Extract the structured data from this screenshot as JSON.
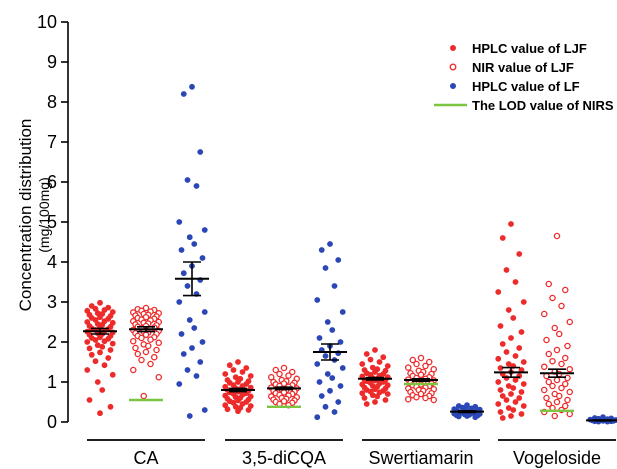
{
  "chart_data": {
    "type": "scatter",
    "ylabel": "Concentration distribution",
    "yunit": "(mg/100mg)",
    "ylim": [
      0,
      10
    ],
    "yticks": [
      0,
      1,
      2,
      3,
      4,
      5,
      6,
      7,
      8,
      9,
      10
    ],
    "categories": [
      "CA",
      "3,5-diCQA",
      "Swertiamarin",
      "Vogeloside"
    ],
    "legend_position": "top-right",
    "colors": {
      "hplc_ljf": "#ee2b2b",
      "nir_ljf": "#ee2b2b",
      "hplc_lf": "#2b47b5",
      "lod": "#7cc540",
      "summary": "#000000"
    },
    "series": [
      {
        "name": "HPLC value of LJF",
        "marker": "filled-circle",
        "color": "#ee2b2b",
        "groups": [
          {
            "category": "CA",
            "mean": 2.27,
            "sem": 0.07,
            "values": [
              2.98,
              2.9,
              2.86,
              2.83,
              2.8,
              2.78,
              2.75,
              2.72,
              2.7,
              2.68,
              2.65,
              2.62,
              2.6,
              2.58,
              2.55,
              2.52,
              2.5,
              2.48,
              2.45,
              2.43,
              2.4,
              2.38,
              2.36,
              2.34,
              2.32,
              2.3,
              2.28,
              2.26,
              2.24,
              2.22,
              2.2,
              2.18,
              2.15,
              2.12,
              2.1,
              2.08,
              2.05,
              2.02,
              2.0,
              1.96,
              1.92,
              1.88,
              1.84,
              1.8,
              1.74,
              1.68,
              1.6,
              1.52,
              1.42,
              1.3,
              1.18,
              1.0,
              0.8,
              0.55,
              0.38,
              0.22
            ]
          },
          {
            "category": "3,5-diCQA",
            "mean": 0.8,
            "sem": 0.04,
            "values": [
              1.5,
              1.42,
              1.35,
              1.3,
              1.25,
              1.2,
              1.15,
              1.12,
              1.08,
              1.05,
              1.02,
              1.0,
              0.98,
              0.95,
              0.92,
              0.9,
              0.88,
              0.86,
              0.84,
              0.82,
              0.8,
              0.78,
              0.76,
              0.74,
              0.72,
              0.7,
              0.68,
              0.66,
              0.64,
              0.62,
              0.6,
              0.58,
              0.56,
              0.54,
              0.52,
              0.5,
              0.48,
              0.45,
              0.42,
              0.4,
              0.38,
              0.35,
              0.32,
              0.3,
              0.27
            ]
          },
          {
            "category": "Swertiamarin",
            "mean": 1.08,
            "sem": 0.03,
            "values": [
              1.8,
              1.7,
              1.62,
              1.56,
              1.5,
              1.45,
              1.4,
              1.36,
              1.32,
              1.3,
              1.28,
              1.25,
              1.22,
              1.2,
              1.18,
              1.16,
              1.14,
              1.12,
              1.1,
              1.08,
              1.06,
              1.05,
              1.04,
              1.02,
              1.0,
              0.98,
              0.96,
              0.94,
              0.92,
              0.9,
              0.88,
              0.86,
              0.84,
              0.82,
              0.8,
              0.78,
              0.76,
              0.74,
              0.72,
              0.7,
              0.67,
              0.64,
              0.6,
              0.55,
              0.5,
              0.45
            ]
          },
          {
            "category": "Vogeloside",
            "mean": 1.24,
            "sem": 0.12,
            "values": [
              4.95,
              4.6,
              4.2,
              3.8,
              3.5,
              3.25,
              3.0,
              2.8,
              2.6,
              2.4,
              2.25,
              2.1,
              1.95,
              1.85,
              1.75,
              1.65,
              1.58,
              1.5,
              1.45,
              1.4,
              1.35,
              1.3,
              1.25,
              1.2,
              1.15,
              1.1,
              1.05,
              1.0,
              0.95,
              0.9,
              0.85,
              0.8,
              0.75,
              0.7,
              0.65,
              0.6,
              0.55,
              0.5,
              0.45,
              0.4,
              0.35,
              0.3,
              0.25,
              0.2,
              0.15,
              0.1
            ]
          }
        ]
      },
      {
        "name": "NIR value of LJF",
        "marker": "open-circle",
        "color": "#ee2b2b",
        "groups": [
          {
            "category": "CA",
            "mean": 2.32,
            "sem": 0.06,
            "values": [
              2.85,
              2.82,
              2.8,
              2.78,
              2.76,
              2.74,
              2.72,
              2.7,
              2.68,
              2.66,
              2.64,
              2.62,
              2.6,
              2.58,
              2.56,
              2.54,
              2.52,
              2.5,
              2.48,
              2.46,
              2.44,
              2.42,
              2.4,
              2.38,
              2.36,
              2.34,
              2.32,
              2.3,
              2.28,
              2.26,
              2.24,
              2.22,
              2.2,
              2.18,
              2.15,
              2.12,
              2.1,
              2.06,
              2.02,
              1.98,
              1.94,
              1.9,
              1.85,
              1.8,
              1.75,
              1.7,
              1.62,
              1.55,
              1.45,
              1.3,
              1.12,
              0.65
            ]
          },
          {
            "category": "3,5-diCQA",
            "mean": 0.84,
            "sem": 0.03,
            "values": [
              1.35,
              1.3,
              1.25,
              1.2,
              1.16,
              1.12,
              1.08,
              1.05,
              1.02,
              1.0,
              0.98,
              0.96,
              0.94,
              0.92,
              0.9,
              0.88,
              0.86,
              0.84,
              0.82,
              0.8,
              0.78,
              0.76,
              0.74,
              0.72,
              0.7,
              0.68,
              0.66,
              0.64,
              0.62,
              0.6,
              0.58,
              0.56,
              0.54,
              0.52,
              0.5,
              0.48,
              0.45,
              0.42
            ]
          },
          {
            "category": "Swertiamarin",
            "mean": 1.05,
            "sem": 0.03,
            "values": [
              1.6,
              1.55,
              1.5,
              1.45,
              1.4,
              1.36,
              1.32,
              1.28,
              1.25,
              1.22,
              1.2,
              1.18,
              1.15,
              1.12,
              1.1,
              1.08,
              1.06,
              1.04,
              1.02,
              1.0,
              0.98,
              0.96,
              0.94,
              0.92,
              0.9,
              0.88,
              0.86,
              0.84,
              0.82,
              0.8,
              0.78,
              0.75,
              0.72,
              0.7,
              0.67,
              0.65,
              0.62,
              0.6,
              0.57,
              0.55
            ]
          },
          {
            "category": "Vogeloside",
            "mean": 1.22,
            "sem": 0.1,
            "values": [
              4.65,
              3.45,
              3.3,
              3.1,
              2.9,
              2.7,
              2.5,
              2.35,
              2.2,
              2.05,
              1.9,
              1.8,
              1.7,
              1.6,
              1.52,
              1.45,
              1.38,
              1.32,
              1.26,
              1.2,
              1.15,
              1.1,
              1.05,
              1.0,
              0.95,
              0.9,
              0.85,
              0.8,
              0.75,
              0.7,
              0.65,
              0.6,
              0.55,
              0.5,
              0.45,
              0.4,
              0.35,
              0.3,
              0.25,
              0.2,
              0.15
            ]
          }
        ]
      },
      {
        "name": "HPLC value of LF",
        "marker": "filled-circle",
        "color": "#2b47b5",
        "groups": [
          {
            "category": "CA",
            "mean": 3.58,
            "sem": 0.42,
            "values": [
              8.38,
              8.2,
              6.75,
              6.05,
              5.9,
              5.0,
              4.8,
              4.62,
              4.45,
              4.3,
              4.1,
              3.9,
              3.72,
              3.55,
              3.4,
              3.2,
              3.0,
              2.75,
              2.55,
              2.35,
              2.2,
              2.0,
              1.85,
              1.7,
              1.5,
              1.3,
              1.15,
              0.95,
              0.3,
              0.15
            ]
          },
          {
            "category": "3,5-diCQA",
            "mean": 1.75,
            "sem": 0.2,
            "values": [
              4.45,
              4.3,
              4.05,
              3.85,
              3.4,
              3.05,
              2.75,
              2.5,
              2.3,
              2.1,
              2.0,
              1.9,
              1.8,
              1.72,
              1.65,
              1.55,
              1.45,
              1.35,
              1.2,
              1.1,
              1.0,
              0.9,
              0.78,
              0.65,
              0.5,
              0.38,
              0.25,
              0.12
            ]
          },
          {
            "category": "Swertiamarin",
            "mean": 0.26,
            "sem": 0.02,
            "values": [
              0.42,
              0.4,
              0.38,
              0.36,
              0.34,
              0.32,
              0.31,
              0.3,
              0.29,
              0.28,
              0.27,
              0.26,
              0.25,
              0.24,
              0.23,
              0.22,
              0.21,
              0.2,
              0.19,
              0.18,
              0.17,
              0.16,
              0.15,
              0.14,
              0.12
            ]
          },
          {
            "category": "Vogeloside",
            "mean": 0.04,
            "sem": 0.01,
            "values": [
              0.12,
              0.1,
              0.09,
              0.08,
              0.07,
              0.06,
              0.05,
              0.05,
              0.04,
              0.04,
              0.03,
              0.03,
              0.02,
              0.02,
              0.01,
              0.01
            ]
          }
        ]
      }
    ],
    "lod": {
      "name": "The LOD value of NIRS",
      "color": "#7cc540",
      "values": [
        {
          "category": "CA",
          "value": 0.55
        },
        {
          "category": "3,5-diCQA",
          "value": 0.38
        },
        {
          "category": "Swertiamarin",
          "value": 0.95
        },
        {
          "category": "Vogeloside",
          "value": 0.28
        }
      ]
    }
  }
}
